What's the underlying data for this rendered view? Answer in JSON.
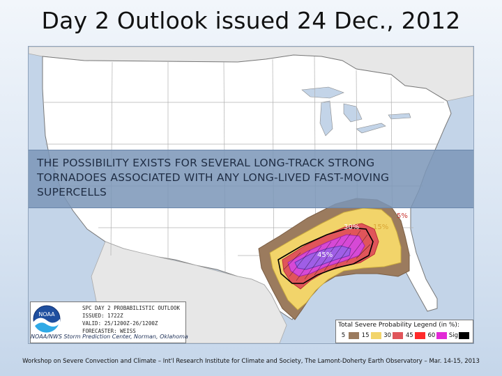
{
  "title": "Day 2 Outlook issued 24 Dec., 2012",
  "banner": {
    "lines": [
      "THE POSSIBILITY EXISTS FOR SEVERAL LONG-TRACK STRONG",
      "TORNADOES ASSOCIATED WITH ANY LONG-LIVED FAST-MOVING",
      "SUPERCELLS"
    ]
  },
  "map": {
    "region": "Continental United States",
    "outlook_type": "Day 2 total severe probability",
    "contours": [
      {
        "label": "5%",
        "color": "#9b7b5e"
      },
      {
        "label": "15%",
        "color": "#f2d46a"
      },
      {
        "label": "30%",
        "color": "#e0555a"
      },
      {
        "label": "45%",
        "color": "#d649d6"
      },
      {
        "label": "60%",
        "color": "#9f5ee6"
      },
      {
        "label": "Sig",
        "color": "#000000"
      }
    ],
    "labels": {
      "five": "5%",
      "fifteen": "15%",
      "thirty": "30%",
      "forty_five": "45%"
    }
  },
  "info_box": {
    "line1": "SPC DAY 2 PROBABILISTIC OUTLOOK",
    "line2": "ISSUED: 1722Z",
    "line3": "VALID: 25/1200Z-26/1200Z",
    "line4": "FORECASTER: WEISS",
    "credit": "NOAA/NWS Storm Prediction Center, Norman, Oklahoma"
  },
  "legend": {
    "title": "Total Severe Probability Legend (in %):",
    "items": [
      {
        "label": "5",
        "color": "#9b7b5e"
      },
      {
        "label": "15",
        "color": "#f2d46a"
      },
      {
        "label": "30",
        "color": "#e0555a"
      },
      {
        "label": "45",
        "color": "#ff2a2a"
      },
      {
        "label": "60",
        "color": "#e22ad6"
      },
      {
        "label": "Sig",
        "color": "#000000"
      }
    ]
  },
  "footer": "Workshop on Severe Convection and Climate – Int'l Research Institute for Climate and Society, The Lamont-Doherty Earth Observatory – Mar. 14-15, 2013"
}
